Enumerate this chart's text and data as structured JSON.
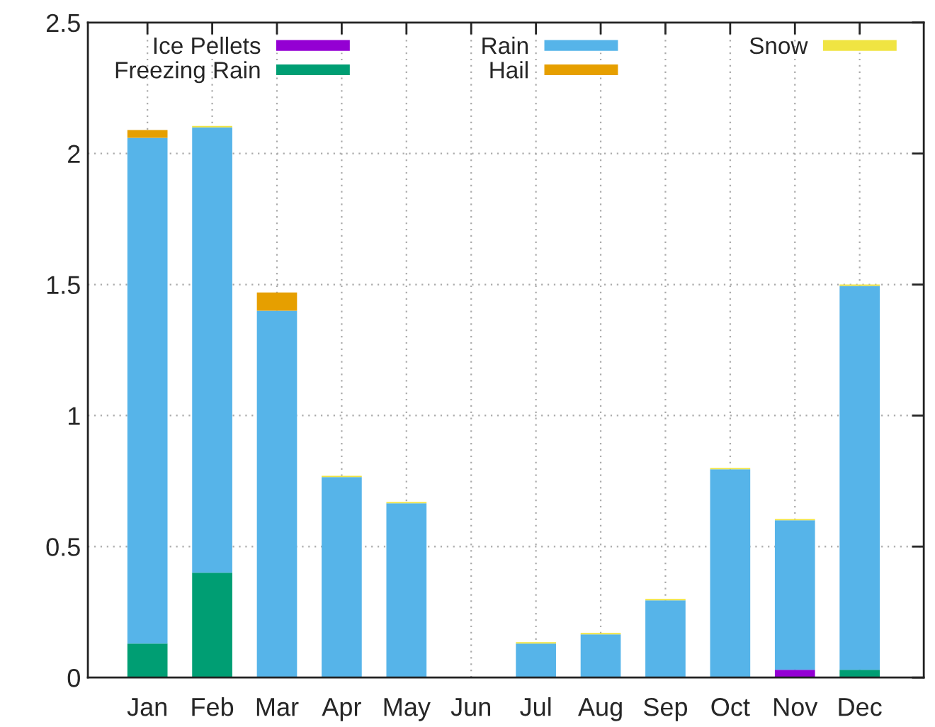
{
  "chart_data": {
    "type": "bar",
    "stacked": true,
    "categories": [
      "Jan",
      "Feb",
      "Mar",
      "Apr",
      "May",
      "Jun",
      "Jul",
      "Aug",
      "Sep",
      "Oct",
      "Nov",
      "Dec"
    ],
    "series": [
      {
        "name": "Ice Pellets",
        "color": "#9400d3",
        "values": [
          0,
          0,
          0,
          0,
          0,
          0,
          0,
          0,
          0,
          0,
          0.03,
          0
        ]
      },
      {
        "name": "Freezing Rain",
        "color": "#009e73",
        "values": [
          0.13,
          0.4,
          0,
          0,
          0,
          0,
          0,
          0,
          0,
          0,
          0,
          0.03
        ]
      },
      {
        "name": "Rain",
        "color": "#56b4e9",
        "values": [
          1.93,
          1.7,
          1.4,
          0.765,
          0.665,
          0,
          0.13,
          0.165,
          0.295,
          0.795,
          0.57,
          1.465
        ]
      },
      {
        "name": "Hail",
        "color": "#e69f00",
        "values": [
          0.03,
          0,
          0.07,
          0,
          0,
          0,
          0,
          0,
          0,
          0,
          0,
          0
        ]
      },
      {
        "name": "Snow",
        "color": "#f0e442",
        "values": [
          0,
          0.005,
          0,
          0.005,
          0.005,
          0,
          0.005,
          0.005,
          0.005,
          0.005,
          0.005,
          0.005
        ]
      }
    ],
    "ylim": [
      0,
      2.5
    ],
    "yticks": [
      0,
      0.5,
      1,
      1.5,
      2,
      2.5
    ],
    "grid": true,
    "legend": "top"
  }
}
